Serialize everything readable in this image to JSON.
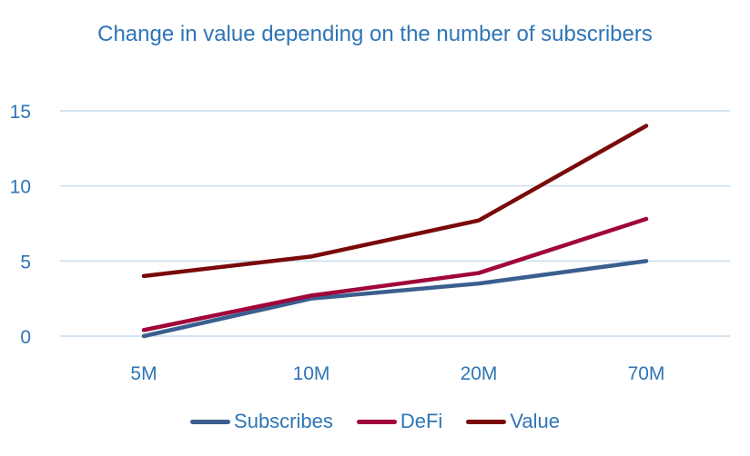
{
  "chart_data": {
    "type": "line",
    "title": "Change in value depending on the number of subscribers",
    "categories": [
      "5M",
      "10M",
      "20M",
      "70M"
    ],
    "y_ticks": [
      "0",
      "5",
      "10",
      "15"
    ],
    "ylim": [
      0,
      15
    ],
    "grid": true,
    "legend_position": "bottom",
    "series": [
      {
        "name": "Subscribes",
        "values": [
          0,
          2.5,
          3.5,
          5
        ],
        "color": "#3A5F8F"
      },
      {
        "name": "DeFi",
        "values": [
          0.4,
          2.7,
          4.2,
          7.8
        ],
        "color": "#A0063A"
      },
      {
        "name": "Value",
        "values": [
          4,
          5.3,
          7.7,
          14
        ],
        "color": "#7A0A0A"
      }
    ],
    "colors": {
      "text": "#2E75B6",
      "grid": "#C9DCEC"
    }
  }
}
